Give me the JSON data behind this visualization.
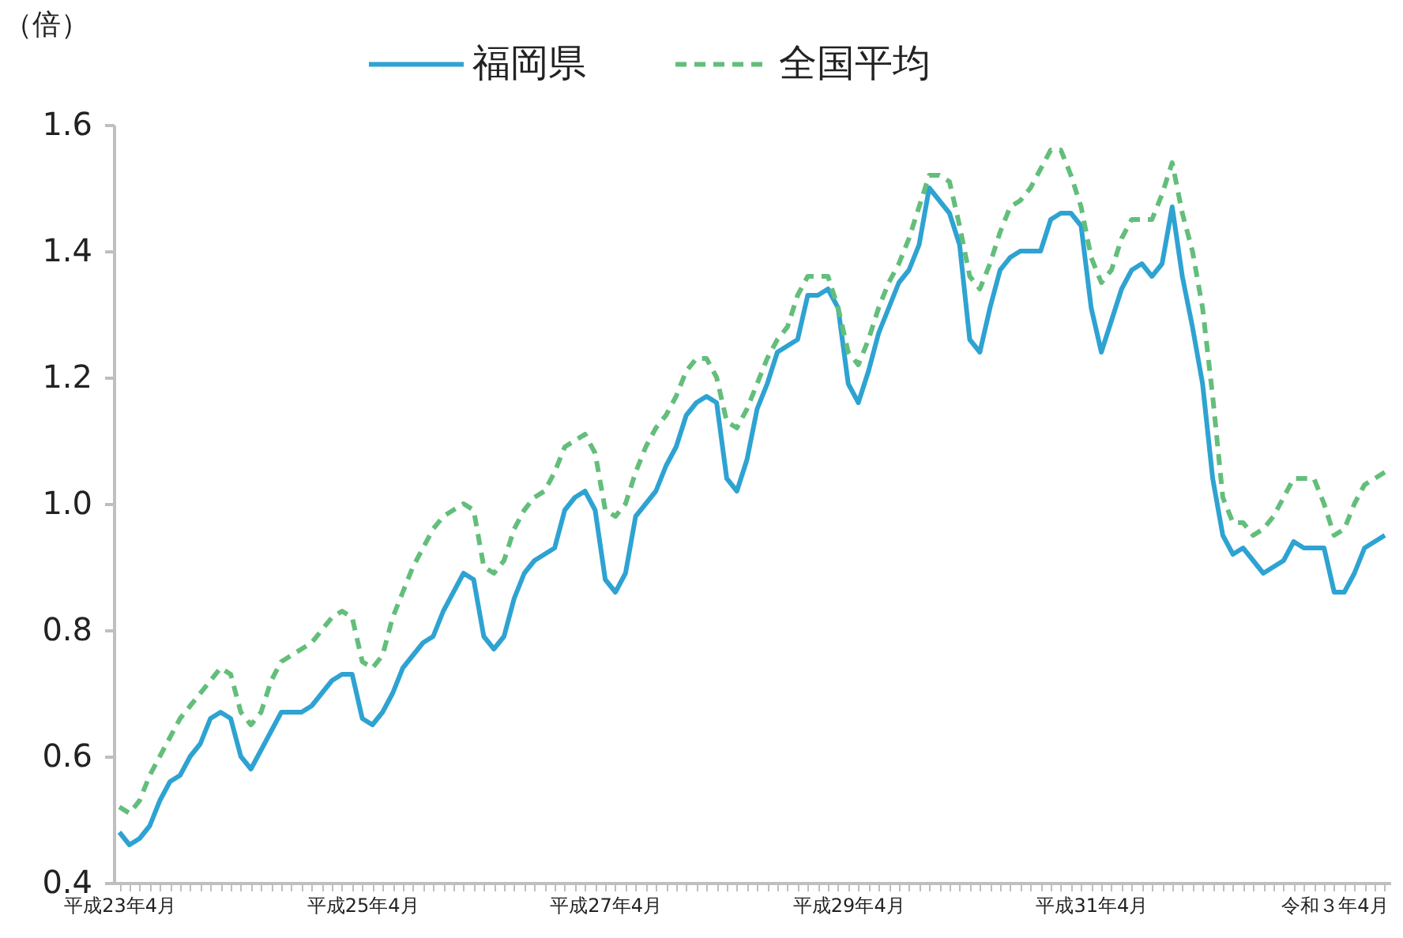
{
  "chart_data": {
    "type": "line",
    "ylabel": "（倍）",
    "legend": "top",
    "grid": false,
    "marker": "none",
    "categories": [
      "平成23年4月",
      null,
      null,
      null,
      null,
      null,
      null,
      null,
      null,
      null,
      null,
      null,
      null,
      null,
      null,
      null,
      null,
      null,
      null,
      null,
      null,
      null,
      null,
      null,
      "平成25年4月",
      null,
      null,
      null,
      null,
      null,
      null,
      null,
      null,
      null,
      null,
      null,
      null,
      null,
      null,
      null,
      null,
      null,
      null,
      null,
      null,
      null,
      null,
      null,
      "平成27年4月",
      null,
      null,
      null,
      null,
      null,
      null,
      null,
      null,
      null,
      null,
      null,
      null,
      null,
      null,
      null,
      null,
      null,
      null,
      null,
      null,
      null,
      null,
      null,
      "平成29年4月",
      null,
      null,
      null,
      null,
      null,
      null,
      null,
      null,
      null,
      null,
      null,
      null,
      null,
      null,
      null,
      null,
      null,
      null,
      null,
      null,
      null,
      null,
      null,
      "平成31年4月",
      null,
      null,
      null,
      null,
      null,
      null,
      null,
      null,
      null,
      null,
      null,
      null,
      null,
      null,
      null,
      null,
      null,
      null,
      null,
      null,
      null,
      null,
      null,
      "令和３年4月",
      null,
      null,
      null,
      null,
      null
    ],
    "ylim": [
      0.4,
      1.6
    ],
    "yticks": [
      0.4,
      0.6,
      0.8,
      {
        "value": 1,
        "label": "1.0"
      },
      1.2,
      1.4,
      1.6
    ],
    "series": [
      {
        "name": "福岡県",
        "color": "#2ea3d2",
        "line_style": "solid",
        "values": [
          0.48,
          0.46,
          0.47,
          0.49,
          0.53,
          0.56,
          0.57,
          0.6,
          0.62,
          0.66,
          0.67,
          0.66,
          0.6,
          0.58,
          0.61,
          0.64,
          0.67,
          0.67,
          0.67,
          0.68,
          0.7,
          0.72,
          0.73,
          0.73,
          0.66,
          0.65,
          0.67,
          0.7,
          0.74,
          0.76,
          0.78,
          0.79,
          0.83,
          0.86,
          0.89,
          0.88,
          0.79,
          0.77,
          0.79,
          0.85,
          0.89,
          0.91,
          0.92,
          0.93,
          0.99,
          1.01,
          1.02,
          0.99,
          0.88,
          0.86,
          0.89,
          0.98,
          1.0,
          1.02,
          1.06,
          1.09,
          1.14,
          1.16,
          1.17,
          1.16,
          1.04,
          1.02,
          1.07,
          1.15,
          1.19,
          1.24,
          1.25,
          1.26,
          1.33,
          1.33,
          1.34,
          1.31,
          1.19,
          1.16,
          1.21,
          1.27,
          1.31,
          1.35,
          1.37,
          1.41,
          1.5,
          1.48,
          1.46,
          1.41,
          1.26,
          1.24,
          1.31,
          1.37,
          1.39,
          1.4,
          1.4,
          1.4,
          1.45,
          1.46,
          1.46,
          1.44,
          1.31,
          1.24,
          1.29,
          1.34,
          1.37,
          1.38,
          1.36,
          1.38,
          1.47,
          1.36,
          1.28,
          1.19,
          1.04,
          0.95,
          0.92,
          0.93,
          0.91,
          0.89,
          0.9,
          0.91,
          0.94,
          0.93,
          0.93,
          0.93,
          0.86,
          0.86,
          0.89,
          0.93,
          0.94,
          0.95
        ]
      },
      {
        "name": "全国平均",
        "color": "#63be7b",
        "line_style": "dashed",
        "values": [
          0.52,
          0.51,
          0.53,
          0.57,
          0.6,
          0.63,
          0.66,
          0.68,
          0.7,
          0.72,
          0.74,
          0.73,
          0.67,
          0.65,
          0.67,
          0.72,
          0.75,
          0.76,
          0.77,
          0.78,
          0.8,
          0.82,
          0.83,
          0.82,
          0.75,
          0.74,
          0.76,
          0.82,
          0.86,
          0.9,
          0.93,
          0.96,
          0.98,
          0.99,
          1.0,
          0.99,
          0.9,
          0.89,
          0.91,
          0.96,
          0.99,
          1.01,
          1.02,
          1.05,
          1.09,
          1.1,
          1.11,
          1.08,
          0.99,
          0.98,
          1.0,
          1.05,
          1.09,
          1.12,
          1.14,
          1.17,
          1.21,
          1.23,
          1.23,
          1.2,
          1.13,
          1.12,
          1.15,
          1.19,
          1.23,
          1.26,
          1.28,
          1.33,
          1.36,
          1.36,
          1.36,
          1.31,
          1.24,
          1.22,
          1.26,
          1.31,
          1.35,
          1.38,
          1.42,
          1.47,
          1.52,
          1.52,
          1.51,
          1.44,
          1.36,
          1.34,
          1.38,
          1.43,
          1.47,
          1.48,
          1.5,
          1.53,
          1.56,
          1.56,
          1.52,
          1.47,
          1.39,
          1.35,
          1.37,
          1.42,
          1.45,
          1.45,
          1.45,
          1.49,
          1.54,
          1.46,
          1.4,
          1.31,
          1.17,
          1.01,
          0.97,
          0.97,
          0.95,
          0.96,
          0.98,
          1.01,
          1.04,
          1.04,
          1.04,
          1.0,
          0.95,
          0.96,
          1.0,
          1.03,
          1.04,
          1.05
        ]
      }
    ]
  }
}
